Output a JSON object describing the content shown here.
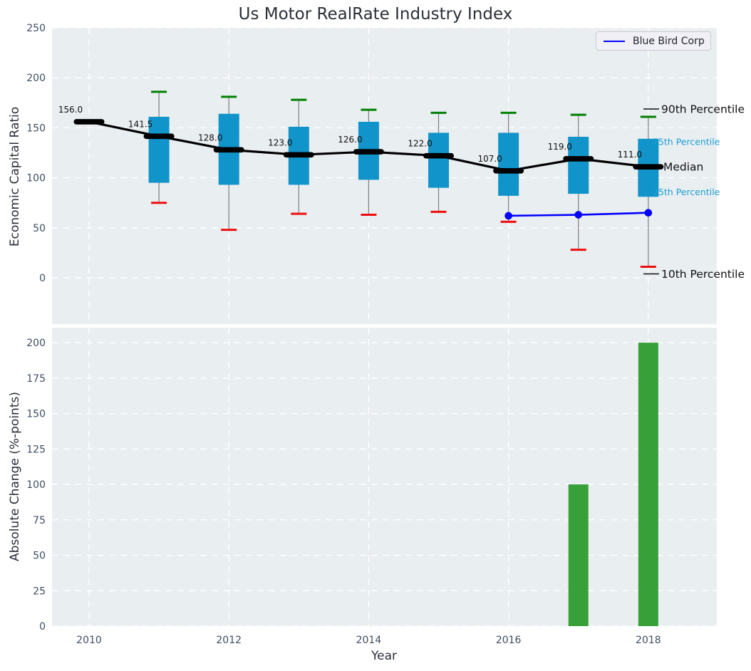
{
  "figure": {
    "title": "Us Motor RealRate Industry Index",
    "colors": {
      "plot_bg": "#e9eef1",
      "grid": "#ffffff",
      "box": "#1094c9",
      "cyan_label": "#1d9fd3",
      "green_cap": "#008000",
      "red_cap": "#ee0e0e",
      "bar_green": "#38a038",
      "blue_line": "#0000ff",
      "median": "#000000",
      "whisker": "#7f7f7f",
      "tick": "#3d4e63",
      "annotation": "#111111"
    }
  },
  "legend": {
    "label": "Blue Bird Corp"
  },
  "annotations": {
    "p90": "90th Percentile",
    "p75": "75th Percentile",
    "median": "Median",
    "p25": "25th Percentile",
    "p10": "10th Percentile"
  },
  "chart_data": [
    {
      "type": "box",
      "title": "Us Motor RealRate Industry Index",
      "xlabel": "",
      "ylabel": "Economic Capital Ratio",
      "x": [
        2010,
        2011,
        2012,
        2013,
        2014,
        2015,
        2016,
        2017,
        2018
      ],
      "xticks": [
        2010,
        2012,
        2014,
        2016,
        2018
      ],
      "yticks": [
        0,
        50,
        100,
        150,
        200,
        250
      ],
      "xlim": [
        2009.47,
        2018.98
      ],
      "ylim": [
        -46.3,
        250
      ],
      "grid": true,
      "legend_position": "upper right",
      "series": [
        {
          "name": "Median",
          "values": [
            156.0,
            141.5,
            128.0,
            123.0,
            126.0,
            122.0,
            107.0,
            119.0,
            111.0
          ],
          "labels": [
            "156.0",
            "141.5",
            "128.0",
            "123.0",
            "126.0",
            "122.0",
            "107.0",
            "119.0",
            "111.0"
          ]
        },
        {
          "name": "75th Percentile",
          "values": [
            null,
            161,
            164,
            151,
            156,
            145,
            145,
            141,
            139
          ]
        },
        {
          "name": "25th Percentile",
          "values": [
            null,
            95,
            93,
            93,
            98,
            90,
            82,
            84,
            81
          ]
        },
        {
          "name": "90th Percentile",
          "values": [
            null,
            186,
            181,
            178,
            168,
            165,
            165,
            163,
            161
          ]
        },
        {
          "name": "10th Percentile",
          "values": [
            null,
            75,
            48,
            64,
            63,
            66,
            56,
            28,
            11
          ]
        },
        {
          "name": "Blue Bird Corp",
          "x": [
            2016,
            2017,
            2018
          ],
          "values": [
            62,
            63,
            65
          ]
        }
      ]
    },
    {
      "type": "bar",
      "title": "",
      "xlabel": "Year",
      "ylabel": "Absolute Change (%-points)",
      "x": [
        2017,
        2018
      ],
      "values": [
        100,
        200
      ],
      "xticks": [
        2010,
        2012,
        2014,
        2016,
        2018
      ],
      "yticks": [
        0,
        25,
        50,
        75,
        100,
        125,
        150,
        175,
        200
      ],
      "xlim": [
        2009.47,
        2018.98
      ],
      "ylim": [
        0,
        210.6
      ],
      "grid": true
    }
  ]
}
